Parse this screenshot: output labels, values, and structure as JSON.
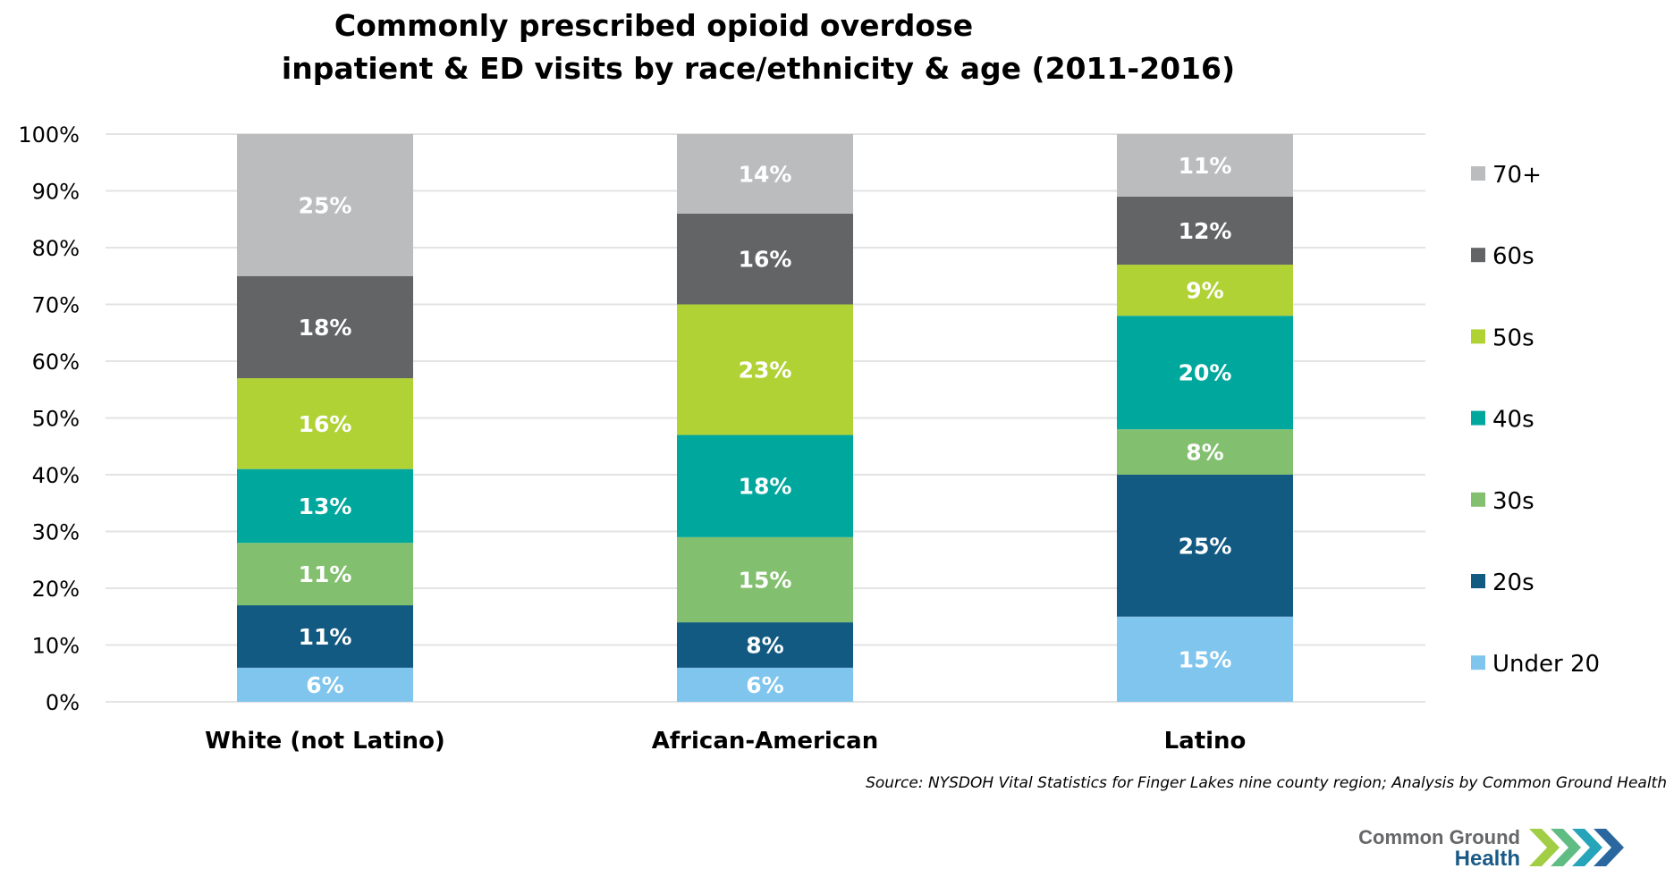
{
  "chart_data": {
    "type": "bar",
    "stacked": true,
    "title": "Commonly prescribed opioid overdose inpatient & ED visits by race/ethnicity & age (2011-2016)",
    "title_lines": [
      "Commonly prescribed opioid overdose",
      "inpatient & ED visits by race/ethnicity & age (2011-2016)"
    ],
    "xlabel": "",
    "ylabel": "",
    "ylim": [
      0,
      100
    ],
    "y_ticks": [
      "0%",
      "10%",
      "20%",
      "30%",
      "40%",
      "50%",
      "60%",
      "70%",
      "80%",
      "90%",
      "100%"
    ],
    "grid": true,
    "legend_position": "right",
    "categories": [
      "White (not Latino)",
      "African-American",
      "Latino"
    ],
    "series": [
      {
        "name": "Under 20",
        "color": "#7fc5ee",
        "values": [
          6,
          6,
          15
        ]
      },
      {
        "name": "20s",
        "color": "#135a82",
        "values": [
          11,
          8,
          25
        ]
      },
      {
        "name": "30s",
        "color": "#82bf6e",
        "values": [
          11,
          15,
          8
        ]
      },
      {
        "name": "40s",
        "color": "#00a79d",
        "values": [
          13,
          18,
          20
        ]
      },
      {
        "name": "50s",
        "color": "#b1d235",
        "values": [
          16,
          23,
          9
        ]
      },
      {
        "name": "60s",
        "color": "#636466",
        "values": [
          18,
          16,
          12
        ]
      },
      {
        "name": "70+",
        "color": "#bbbcbe",
        "values": [
          25,
          14,
          11
        ]
      }
    ],
    "source": "Source: NYSDOH Vital Statistics for Finger Lakes nine county region; Analysis by Common Ground Health"
  },
  "logo": {
    "line1": "Common Ground",
    "line2": "Health",
    "chevron_colors": [
      "#9ccb3b",
      "#56b87c",
      "#1a9fb5",
      "#1f5f99"
    ]
  }
}
